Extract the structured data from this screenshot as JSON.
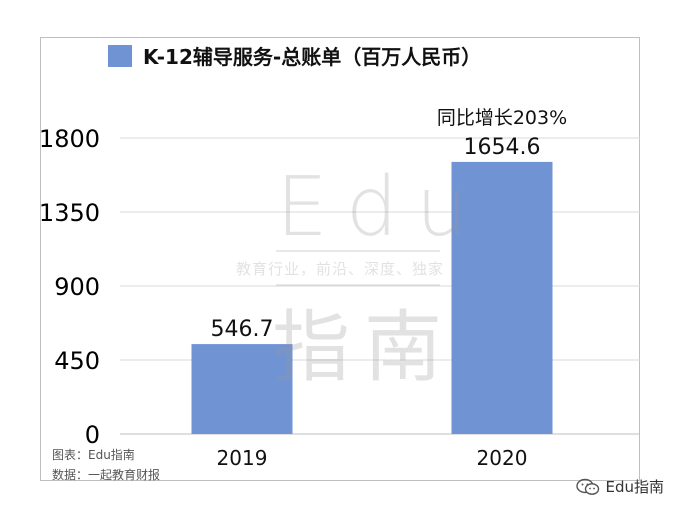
{
  "chart_data": {
    "type": "bar",
    "title": "",
    "legend": {
      "label": "K-12辅导服务-总账单（百万人民币）",
      "color": "#7093d4",
      "position": "top"
    },
    "categories": [
      "2019",
      "2020"
    ],
    "series": [
      {
        "name": "K-12辅导服务-总账单（百万人民币）",
        "values": [
          546.7,
          1654.6
        ]
      }
    ],
    "data_labels": [
      "546.7",
      "1654.6"
    ],
    "annotation": "同比增长203%",
    "ylim": [
      0,
      1800
    ],
    "yticks": [
      0,
      450,
      900,
      1350,
      1800
    ],
    "ytick_labels": [
      "0",
      "450",
      "900",
      "1350",
      "1800"
    ],
    "grid": true,
    "bar_color": "#7093d4"
  },
  "watermark": {
    "brand": "Edu",
    "tagline": "教育行业，前沿、深度、独家",
    "name": "指南"
  },
  "source": {
    "chart_credit": "图表：Edu指南",
    "data_credit": "数据：一起教育财报"
  },
  "footer_brand": "Edu指南"
}
